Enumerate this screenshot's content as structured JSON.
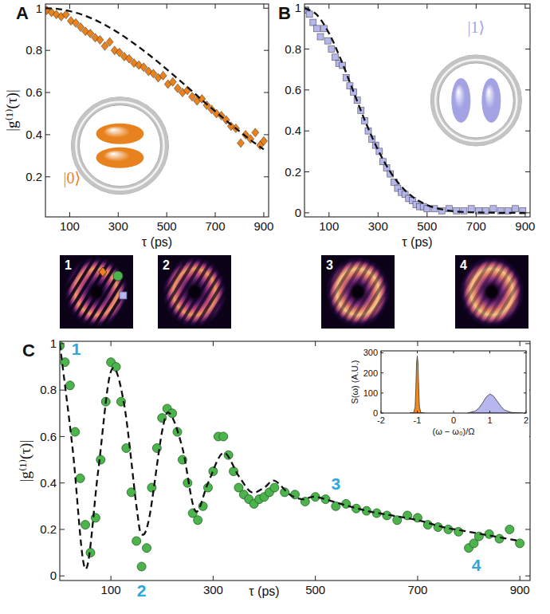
{
  "chart_data": [
    {
      "type": "scatter",
      "title": "A",
      "x_label": "τ (ps)",
      "y_label": "|g⁽¹⁾(τ)|",
      "xlim": [
        0,
        920
      ],
      "ylim": [
        0.01,
        1.02
      ],
      "xticks": [
        100,
        300,
        500,
        700,
        900
      ],
      "yticks": [
        0.2,
        0.4,
        0.6,
        0.8,
        1
      ],
      "annotations": [
        {
          "text": "|0⟩",
          "x": 110,
          "y": 0.17,
          "color": "#e8821e"
        }
      ],
      "series": [
        {
          "type": "scatter",
          "marker": "diamond",
          "color": "#e8821e",
          "x": [
            5,
            25,
            45,
            65,
            85,
            105,
            125,
            145,
            165,
            185,
            205,
            225,
            245,
            265,
            285,
            305,
            325,
            345,
            365,
            385,
            405,
            425,
            445,
            465,
            485,
            505,
            525,
            545,
            565,
            585,
            605,
            625,
            645,
            665,
            685,
            705,
            725,
            745,
            765,
            785,
            805,
            825,
            845,
            865,
            885,
            900
          ],
          "values": [
            0.99,
            0.98,
            0.97,
            0.96,
            0.97,
            0.94,
            0.93,
            0.91,
            0.89,
            0.88,
            0.86,
            0.85,
            0.82,
            0.84,
            0.8,
            0.79,
            0.77,
            0.76,
            0.74,
            0.73,
            0.72,
            0.7,
            0.69,
            0.67,
            0.68,
            0.64,
            0.65,
            0.62,
            0.6,
            0.61,
            0.58,
            0.56,
            0.57,
            0.54,
            0.52,
            0.5,
            0.49,
            0.47,
            0.44,
            0.43,
            0.36,
            0.4,
            0.38,
            0.41,
            0.35,
            0.37
          ]
        },
        {
          "type": "line",
          "line_style": "dashed",
          "color": "#111111",
          "x": [
            0,
            50,
            100,
            150,
            200,
            250,
            300,
            350,
            400,
            450,
            500,
            550,
            600,
            650,
            700,
            750,
            800,
            850,
            900
          ],
          "values": [
            1,
            0.997,
            0.986,
            0.97,
            0.947,
            0.918,
            0.884,
            0.845,
            0.803,
            0.758,
            0.71,
            0.661,
            0.611,
            0.56,
            0.511,
            0.462,
            0.416,
            0.371,
            0.33
          ]
        }
      ]
    },
    {
      "type": "scatter",
      "title": "B",
      "x_label": "τ (ps)",
      "xlim": [
        0,
        920
      ],
      "ylim": [
        -0.02,
        1.02
      ],
      "xticks": [
        100,
        300,
        500,
        700,
        900
      ],
      "yticks": [
        0,
        0.2,
        0.4,
        0.6,
        0.8,
        1
      ],
      "annotations": [
        {
          "text": "|1⟩",
          "x": 700,
          "y": 0.88,
          "color": "#a3a3e3"
        }
      ],
      "series": [
        {
          "type": "scatter",
          "marker": "square",
          "color": "#b4b6ec",
          "x": [
            5,
            20,
            35,
            50,
            65,
            80,
            95,
            110,
            125,
            140,
            155,
            170,
            185,
            200,
            215,
            230,
            245,
            260,
            275,
            290,
            305,
            320,
            335,
            350,
            365,
            380,
            395,
            410,
            425,
            440,
            455,
            470,
            485,
            500,
            530,
            560,
            590,
            620,
            650,
            680,
            710,
            740,
            770,
            800,
            830,
            860,
            890
          ],
          "values": [
            0.99,
            0.97,
            0.93,
            0.9,
            0.86,
            0.9,
            0.84,
            0.8,
            0.76,
            0.73,
            0.72,
            0.66,
            0.62,
            0.59,
            0.55,
            0.5,
            0.45,
            0.4,
            0.36,
            0.33,
            0.3,
            0.25,
            0.22,
            0.19,
            0.15,
            0.12,
            0.1,
            0.09,
            0.07,
            0.06,
            0.04,
            0.03,
            0.03,
            0.02,
            0.02,
            0.01,
            0.02,
            0.01,
            0.01,
            0.02,
            0.01,
            0.01,
            0.02,
            0.01,
            0.01,
            0.02,
            0.01
          ]
        },
        {
          "type": "line",
          "line_style": "dashed",
          "color": "#111111",
          "x": [
            0,
            50,
            100,
            150,
            200,
            250,
            300,
            350,
            400,
            450,
            500,
            550,
            600,
            650,
            700,
            750,
            800,
            850,
            900
          ],
          "values": [
            1,
            0.968,
            0.877,
            0.744,
            0.591,
            0.44,
            0.307,
            0.2,
            0.122,
            0.07,
            0.038,
            0.019,
            0.009,
            0.004,
            0.002,
            0.001,
            0,
            0,
            0
          ]
        }
      ]
    },
    {
      "type": "scatter",
      "title": "C",
      "x_label": "τ (ps)",
      "y_label": "|g⁽¹⁾(τ)|",
      "xlim": [
        0,
        920
      ],
      "ylim": [
        -0.02,
        1.01
      ],
      "xticks": [
        100,
        300,
        500,
        700,
        900
      ],
      "yticks": [
        0,
        0.2,
        0.4,
        0.6,
        0.8,
        1
      ],
      "annotations": [
        {
          "text": "1",
          "x": 32,
          "y": 0.95,
          "color": "#2aa7df"
        },
        {
          "text": "2",
          "x": 160,
          "y": -0.09,
          "color": "#2aa7df"
        },
        {
          "text": "3",
          "x": 540,
          "y": 0.37,
          "color": "#2aa7df"
        },
        {
          "text": "4",
          "x": 815,
          "y": 0.02,
          "color": "#2aa7df"
        }
      ],
      "series": [
        {
          "type": "scatter",
          "marker": "circle",
          "color": "#4db34d",
          "x": [
            0,
            10,
            20,
            30,
            40,
            50,
            60,
            70,
            80,
            90,
            100,
            110,
            120,
            130,
            140,
            150,
            160,
            170,
            180,
            190,
            200,
            210,
            220,
            230,
            240,
            250,
            260,
            270,
            280,
            290,
            300,
            310,
            320,
            330,
            340,
            350,
            360,
            370,
            380,
            390,
            400,
            410,
            420,
            440,
            460,
            480,
            500,
            520,
            540,
            560,
            580,
            600,
            620,
            640,
            660,
            680,
            700,
            720,
            740,
            760,
            780,
            800,
            810,
            820,
            840,
            860,
            880,
            900
          ],
          "values": [
            0.99,
            0.92,
            0.82,
            0.62,
            0.42,
            0.22,
            0.1,
            0.25,
            0.5,
            0.75,
            0.92,
            0.9,
            0.75,
            0.55,
            0.36,
            0.15,
            0.04,
            0.12,
            0.38,
            0.55,
            0.68,
            0.72,
            0.7,
            0.62,
            0.5,
            0.4,
            0.27,
            0.24,
            0.3,
            0.38,
            0.45,
            0.6,
            0.6,
            0.52,
            0.45,
            0.38,
            0.35,
            0.33,
            0.31,
            0.33,
            0.34,
            0.36,
            0.38,
            0.36,
            0.35,
            0.32,
            0.34,
            0.33,
            0.3,
            0.31,
            0.29,
            0.28,
            0.27,
            0.26,
            0.24,
            0.26,
            0.25,
            0.22,
            0.21,
            0.2,
            0.19,
            0.12,
            0.14,
            0.17,
            0.18,
            0.16,
            0.2,
            0.14
          ]
        },
        {
          "type": "line",
          "line_style": "dashed",
          "color": "#111111",
          "x": [
            0,
            25,
            50,
            75,
            100,
            125,
            150,
            160,
            175,
            200,
            215,
            240,
            265,
            290,
            320,
            350,
            375,
            400,
            420,
            450,
            475,
            500,
            550,
            600,
            650,
            700,
            750,
            800,
            850,
            900
          ],
          "values": [
            1,
            0.55,
            0.03,
            0.45,
            0.88,
            0.75,
            0.3,
            0.18,
            0.25,
            0.62,
            0.7,
            0.55,
            0.28,
            0.4,
            0.53,
            0.43,
            0.36,
            0.38,
            0.41,
            0.35,
            0.33,
            0.34,
            0.31,
            0.28,
            0.26,
            0.24,
            0.21,
            0.19,
            0.17,
            0.15
          ]
        }
      ]
    },
    {
      "type": "area",
      "x_label": "(ω − ω₀)/Ω",
      "y_label": "S(ω) (A.U.)",
      "xlim": [
        -2,
        2
      ],
      "ylim": [
        0,
        310
      ],
      "xticks": [
        -2,
        -1,
        0,
        1,
        2
      ],
      "yticks": [
        0,
        100,
        200,
        300
      ],
      "series": [
        {
          "type": "area",
          "color": "#f08a1c",
          "x": [
            -1.2,
            -1.1,
            -1.06,
            -1.04,
            -1.02,
            -1,
            -0.98,
            -0.96,
            -0.94,
            -0.9,
            -0.8
          ],
          "values": [
            0,
            2,
            30,
            120,
            250,
            285,
            250,
            120,
            30,
            2,
            0
          ]
        },
        {
          "type": "area",
          "color": "#b7b7ef",
          "x": [
            0.4,
            0.6,
            0.7,
            0.8,
            0.9,
            1,
            1.1,
            1.2,
            1.3,
            1.4,
            1.6,
            1.9
          ],
          "values": [
            1,
            10,
            25,
            50,
            80,
            95,
            85,
            60,
            35,
            15,
            3,
            0
          ]
        }
      ]
    }
  ],
  "frames": [
    "1",
    "2",
    "3",
    "4"
  ]
}
